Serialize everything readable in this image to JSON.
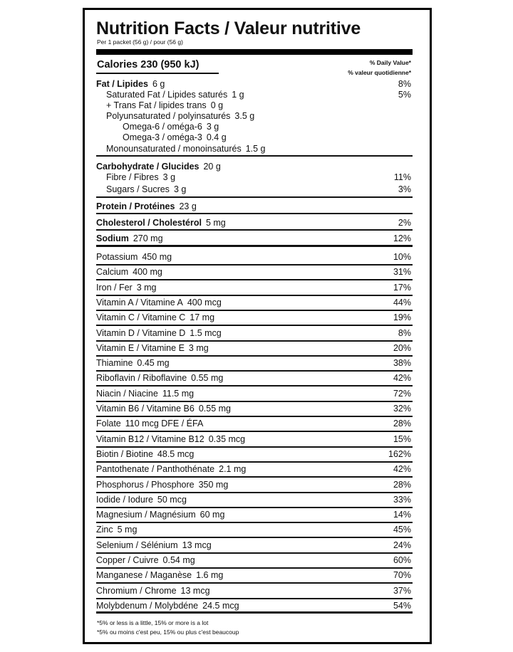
{
  "title": "Nutrition Facts / Valeur nutritive",
  "serving": "Per 1 packet (56 g) / pour (56 g)",
  "calories": "Calories 230 (950 kJ)",
  "dv_header": [
    "% Daily Value*",
    "% valeur quotidienne*"
  ],
  "fat": [
    {
      "name": "Fat / Lipides",
      "amount": "6 g",
      "dv": "8%",
      "indent": 0,
      "bold": true
    },
    {
      "name": "Saturated Fat / Lipides saturés",
      "amount": "1 g",
      "dv": "5%",
      "indent": 1
    },
    {
      "name": "+ Trans Fat / lipides trans",
      "amount": "0 g",
      "dv": "",
      "indent": 1
    },
    {
      "name": "Polyunsaturated / polyinsaturés",
      "amount": "3.5 g",
      "dv": "",
      "indent": 1
    },
    {
      "name": "Omega-6 / oméga-6",
      "amount": "3 g",
      "dv": "",
      "indent": 2
    },
    {
      "name": "Omega-3 / oméga-3",
      "amount": "0.4 g",
      "dv": "",
      "indent": 2
    },
    {
      "name": "Monounsaturated / monoinsaturés",
      "amount": "1.5 g",
      "dv": "",
      "indent": 1
    }
  ],
  "carbs": [
    {
      "name": "Carbohydrate / Glucides",
      "amount": "20 g",
      "dv": "",
      "indent": 0,
      "bold": true
    },
    {
      "name": "Fibre / Fibres",
      "amount": "3 g",
      "dv": "11%",
      "indent": 1
    },
    {
      "name": "Sugars / Sucres",
      "amount": "3 g",
      "dv": "3%",
      "indent": 1
    }
  ],
  "protein": {
    "name": "Protein / Protéines",
    "amount": "23 g",
    "dv": ""
  },
  "cholesterol": {
    "name": "Cholesterol / Cholestérol",
    "amount": "5 mg",
    "dv": "2%"
  },
  "sodium": {
    "name": "Sodium",
    "amount": "270 mg",
    "dv": "12%"
  },
  "micros": [
    {
      "name": "Potassium",
      "amount": "450 mg",
      "dv": "10%"
    },
    {
      "name": "Calcium",
      "amount": "400 mg",
      "dv": "31%"
    },
    {
      "name": "Iron / Fer",
      "amount": "3 mg",
      "dv": "17%"
    },
    {
      "name": "Vitamin A / Vitamine A",
      "amount": "400 mcg",
      "dv": "44%"
    },
    {
      "name": "Vitamin C / Vitamine C",
      "amount": "17 mg",
      "dv": "19%"
    },
    {
      "name": "Vitamin D / Vitamine D",
      "amount": "1.5 mcg",
      "dv": "8%"
    },
    {
      "name": "Vitamin E / Vitamine E",
      "amount": "3 mg",
      "dv": "20%"
    },
    {
      "name": "Thiamine",
      "amount": "0.45 mg",
      "dv": "38%"
    },
    {
      "name": "Riboflavin / Riboflavine",
      "amount": "0.55 mg",
      "dv": "42%"
    },
    {
      "name": "Niacin / Niacine",
      "amount": "11.5 mg",
      "dv": "72%"
    },
    {
      "name": "Vitamin B6 / Vitamine B6",
      "amount": "0.55 mg",
      "dv": "32%"
    },
    {
      "name": "Folate",
      "amount": "110 mcg DFE / ÉFA",
      "dv": "28%"
    },
    {
      "name": "Vitamin B12 / Vitamine B12",
      "amount": "0.35 mcg",
      "dv": "15%"
    },
    {
      "name": "Biotin / Biotine",
      "amount": "48.5 mcg",
      "dv": "162%"
    },
    {
      "name": "Pantothenate / Panthothénate",
      "amount": "2.1 mg",
      "dv": "42%"
    },
    {
      "name": "Phosphorus / Phosphore",
      "amount": "350 mg",
      "dv": "28%"
    },
    {
      "name": "Iodide / Iodure",
      "amount": "50 mcg",
      "dv": "33%"
    },
    {
      "name": "Magnesium / Magnésium",
      "amount": "60 mg",
      "dv": "14%"
    },
    {
      "name": "Zinc",
      "amount": "5 mg",
      "dv": "45%"
    },
    {
      "name": "Selenium / Sélénium",
      "amount": "13 mcg",
      "dv": "24%"
    },
    {
      "name": "Copper / Cuivre",
      "amount": "0.54 mg",
      "dv": "60%"
    },
    {
      "name": "Manganese / Maganèse",
      "amount": "1.6 mg",
      "dv": "70%"
    },
    {
      "name": "Chromium / Chrome",
      "amount": "13 mcg",
      "dv": "37%"
    },
    {
      "name": "Molybdenum / Molybdéne",
      "amount": "24.5 mcg",
      "dv": "54%"
    }
  ],
  "footnote": [
    "*5% or less is a little, 15% or more is a lot",
    "*5% ou moins c'est peu, 15% ou plus c'est beaucoup"
  ]
}
